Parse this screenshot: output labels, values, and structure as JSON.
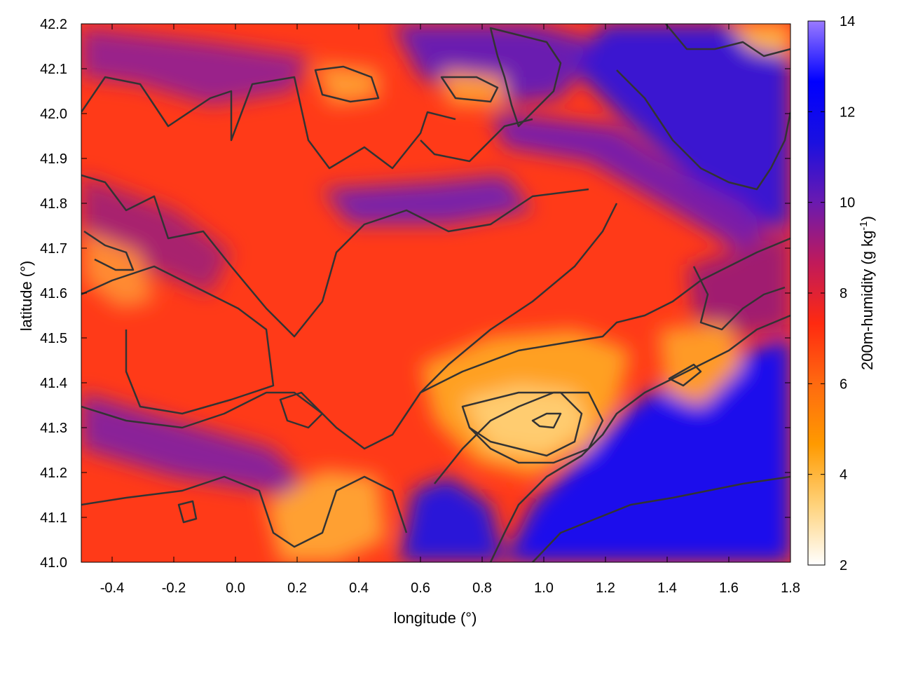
{
  "chart_data": {
    "type": "heatmap",
    "title": "",
    "xlabel": "longitude (°)",
    "ylabel": "latitude (°)",
    "colorbar": {
      "label_main": "200m-humidity (g kg",
      "label_sup": "-1",
      "label_tail": ")",
      "range": [
        2,
        14
      ],
      "ticks": [
        "2",
        "4",
        "6",
        "8",
        "10",
        "12",
        "14"
      ],
      "tick_values": [
        2,
        4,
        6,
        8,
        10,
        12,
        14
      ],
      "palette": [
        "#ffffff",
        "#ffd27a",
        "#ff9a00",
        "#ff6a10",
        "#ff2a10",
        "#c01a5a",
        "#6a1ab0",
        "#1a10e0",
        "#0000ff",
        "#9a7aff"
      ]
    },
    "xlim": [
      -0.5,
      1.8
    ],
    "ylim": [
      41.0,
      42.2
    ],
    "x_ticks": [
      "-0.4",
      "-0.2",
      "0.0",
      "0.2",
      "0.4",
      "0.6",
      "0.8",
      "1.0",
      "1.2",
      "1.4",
      "1.6",
      "1.8"
    ],
    "x_tick_values": [
      -0.4,
      -0.2,
      0.0,
      0.2,
      0.4,
      0.6,
      0.8,
      1.0,
      1.2,
      1.4,
      1.6,
      1.8
    ],
    "y_ticks": [
      "41.0",
      "41.1",
      "41.2",
      "41.3",
      "41.4",
      "41.5",
      "41.6",
      "41.7",
      "41.8",
      "41.9",
      "42.0",
      "42.1",
      "42.2"
    ],
    "y_tick_values": [
      41.0,
      41.1,
      41.2,
      41.3,
      41.4,
      41.5,
      41.6,
      41.7,
      41.8,
      41.9,
      42.0,
      42.1,
      42.2
    ],
    "grid": false,
    "contours": true,
    "field_summary": "specific humidity at 200 m; moist (blue, 10-12) over the sea to the south-east and north-east, dry (yellow, 3-5) near 0.9-1.1 E / 41.3 N, mostly 7-9 elsewhere"
  }
}
